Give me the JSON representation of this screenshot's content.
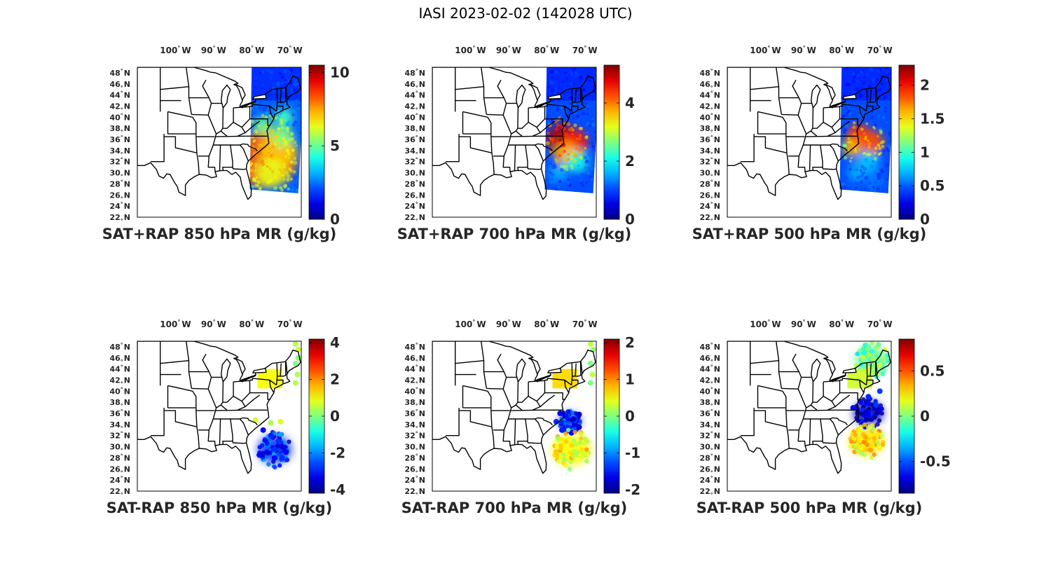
{
  "title": "IASI 2023-02-02 (142028 UTC)",
  "lon_ticks": [
    "100",
    "90",
    "80",
    "70"
  ],
  "lon_suffix": "W",
  "lat_ticks": [
    "48",
    "46",
    "44",
    "42",
    "40",
    "38",
    "36",
    "34",
    "32",
    "30",
    "28",
    "26",
    "24",
    "22"
  ],
  "lat_suffix": "N",
  "degree_symbol": "°",
  "colors": {
    "land_fill": "#ffffff",
    "border": "#000000"
  },
  "panels": [
    {
      "id": "p1",
      "title": "SAT+RAP 850 hPa MR (g/kg)",
      "colorbar": {
        "min": 0,
        "max": 10.5,
        "ticks": [
          "10",
          "5",
          "0"
        ],
        "tick_values": [
          10,
          5,
          0
        ]
      }
    },
    {
      "id": "p2",
      "title": "SAT+RAP 700 hPa MR (g/kg)",
      "colorbar": {
        "min": 0,
        "max": 5.3,
        "ticks": [
          "4",
          "2",
          "0"
        ],
        "tick_values": [
          4,
          2,
          0
        ]
      }
    },
    {
      "id": "p3",
      "title": "SAT+RAP 500 hPa MR (g/kg)",
      "colorbar": {
        "min": 0,
        "max": 2.3,
        "ticks": [
          "2",
          "1.5",
          "1",
          "0.5",
          "0"
        ],
        "tick_values": [
          2,
          1.5,
          1,
          0.5,
          0
        ]
      }
    },
    {
      "id": "p4",
      "title": "SAT-RAP 850 hPa MR (g/kg)",
      "colorbar": {
        "min": -4.2,
        "max": 4.2,
        "ticks": [
          "4",
          "2",
          "0",
          "-2",
          "-4"
        ],
        "tick_values": [
          4,
          2,
          0,
          -2,
          -4
        ]
      }
    },
    {
      "id": "p5",
      "title": "SAT-RAP 700 hPa MR (g/kg)",
      "colorbar": {
        "min": -2.1,
        "max": 2.1,
        "ticks": [
          "2",
          "1",
          "0",
          "-1",
          "-2"
        ],
        "tick_values": [
          2,
          1,
          0,
          -1,
          -2
        ]
      }
    },
    {
      "id": "p6",
      "title": "SAT-RAP 500 hPa MR (g/kg)",
      "colorbar": {
        "min": -0.85,
        "max": 0.85,
        "ticks": [
          "0.5",
          "0",
          "-0.5"
        ],
        "tick_values": [
          0.5,
          0,
          -0.5
        ]
      }
    }
  ]
}
